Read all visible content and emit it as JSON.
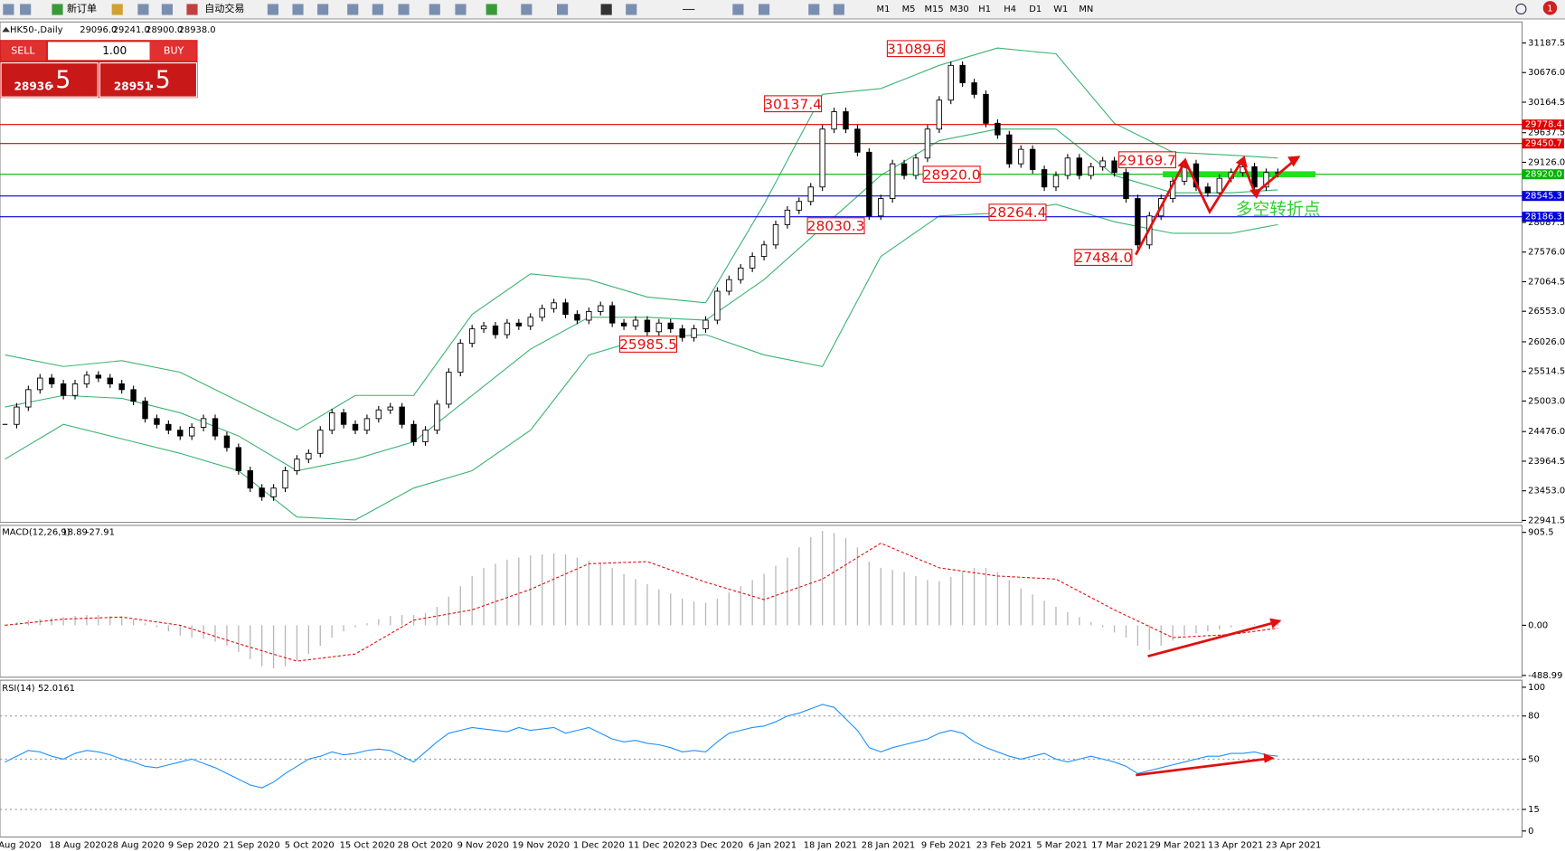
{
  "toolbar": {
    "new_order": "新订单",
    "auto_trading": "自动交易",
    "timeframes": [
      "M1",
      "M5",
      "M15",
      "M30",
      "H1",
      "H4",
      "D1",
      "W1",
      "MN"
    ],
    "notifications": "1"
  },
  "trade_panel": {
    "sell": "SELL",
    "buy": "BUY",
    "lots": "1.00",
    "sell_price": [
      "28936",
      ".5"
    ],
    "buy_price": [
      "28951",
      ".5"
    ]
  },
  "chart_data": [
    {
      "type": "candlestick",
      "title": "HK50-,Daily",
      "quote": [
        "29096.0",
        "29241.0",
        "28900.0",
        "28938.0"
      ],
      "closes": [
        24600,
        24900,
        25200,
        25400,
        25300,
        25100,
        25300,
        25450,
        25400,
        25300,
        25200,
        25000,
        24700,
        24600,
        24500,
        24400,
        24550,
        24700,
        24400,
        24200,
        23800,
        23500,
        23350,
        23500,
        23800,
        24000,
        24100,
        24500,
        24800,
        24600,
        24500,
        24700,
        24850,
        24900,
        24600,
        24300,
        24500,
        24950,
        25500,
        26000,
        26250,
        26300,
        26150,
        26350,
        26300,
        26450,
        26600,
        26700,
        26500,
        26400,
        26550,
        26650,
        26350,
        26300,
        26400,
        26200,
        26350,
        26250,
        26100,
        26250,
        26400,
        26900,
        27100,
        27300,
        27500,
        27700,
        28050,
        28300,
        28450,
        28700,
        29700,
        30000,
        29700,
        29300,
        28200,
        28500,
        29100,
        28900,
        29200,
        29700,
        30200,
        30800,
        30500,
        30300,
        29800,
        29600,
        29100,
        29350,
        29000,
        28700,
        28900,
        29200,
        28900,
        29050,
        29150,
        28950,
        28500,
        27700,
        28200,
        28500,
        28800,
        29100,
        28700,
        28600,
        28850,
        28950,
        29050,
        28700,
        28950,
        28938
      ],
      "bands": {
        "x": [
          0,
          5,
          10,
          15,
          20,
          25,
          30,
          35,
          40,
          45,
          50,
          55,
          60,
          65,
          70,
          75,
          80,
          85,
          90,
          95,
          100,
          105,
          109
        ],
        "upper": [
          25800,
          25600,
          25700,
          25500,
          25000,
          24500,
          25100,
          25100,
          26500,
          27200,
          27100,
          26800,
          26700,
          28400,
          30300,
          30400,
          30800,
          31100,
          31000,
          29800,
          29300,
          29250,
          29200
        ],
        "middle": [
          24900,
          25100,
          25050,
          24800,
          24400,
          23800,
          24000,
          24300,
          25100,
          25900,
          26450,
          26450,
          26400,
          27100,
          28000,
          28900,
          29500,
          29700,
          29700,
          28900,
          28600,
          28600,
          28650
        ],
        "lower": [
          24000,
          24600,
          24350,
          24100,
          23800,
          23000,
          22950,
          23500,
          23800,
          24500,
          25800,
          26100,
          26150,
          25800,
          25600,
          27500,
          28200,
          28250,
          28400,
          28100,
          27900,
          27900,
          28050
        ]
      },
      "ylim": [
        22907.5,
        31549.8
      ],
      "yticks": [
        31187.5,
        {
          "value": 30676,
          "label": "30676.0"
        },
        30164.5,
        29637.5,
        {
          "value": 29126,
          "label": "29126.0"
        },
        28087.5,
        {
          "value": 27576,
          "label": "27576.0"
        },
        27064.5,
        {
          "value": 26553,
          "label": "26553.0"
        },
        {
          "value": 26026,
          "label": "26026.0"
        },
        25514.5,
        {
          "value": 25003,
          "label": "25003.0"
        },
        {
          "value": 24476,
          "label": "24476.0"
        },
        23964.5,
        {
          "value": 23453,
          "label": "23453.0"
        },
        22941.5
      ],
      "price_lines": [
        {
          "value": 29778.4,
          "color": "#e00000"
        },
        {
          "value": 29450.7,
          "color": "#e00000"
        },
        {
          "value": 28920,
          "label": "28920.0",
          "color": "#00b400"
        },
        {
          "value": 28545.3,
          "color": "#0000e0"
        },
        {
          "value": 28186.3,
          "color": "#0000e0"
        }
      ],
      "annotations": [
        {
          "value": 31089.6
        },
        {
          "value": 30137.4
        },
        {
          "value": 29169.7
        },
        {
          "value": 28920,
          "label": "28920.0"
        },
        {
          "value": 28264.4
        },
        {
          "value": 28030.3
        },
        {
          "value": 27484,
          "label": "27484.0"
        },
        {
          "value": 25985.5
        }
      ],
      "note": "多空转折点",
      "dates": [
        "Aug 2020",
        "18 Aug 2020",
        "28 Aug 2020",
        "9 Sep 2020",
        "21 Sep 2020",
        "5 Oct 2020",
        "15 Oct 2020",
        "28 Oct 2020",
        "9 Nov 2020",
        "19 Nov 2020",
        "1 Dec 2020",
        "11 Dec 2020",
        "23 Dec 2020",
        "6 Jan 2021",
        "18 Jan 2021",
        "28 Jan 2021",
        "9 Feb 2021",
        "23 Feb 2021",
        "5 Mar 2021",
        "17 Mar 2021",
        "29 Mar 2021",
        "13 Apr 2021",
        "23 Apr 2021"
      ]
    },
    {
      "type": "macd",
      "title": "MACD(12,26,9)",
      "values": [
        10,
        30,
        50,
        60,
        70,
        80,
        90,
        100,
        100,
        90,
        80,
        60,
        20,
        -20,
        -60,
        -100,
        -120,
        -130,
        -160,
        -200,
        -260,
        -330,
        -400,
        -420,
        -400,
        -340,
        -280,
        -200,
        -120,
        -60,
        -20,
        20,
        60,
        90,
        100,
        100,
        120,
        180,
        280,
        380,
        480,
        560,
        600,
        640,
        660,
        680,
        690,
        700,
        690,
        660,
        630,
        600,
        560,
        500,
        450,
        400,
        350,
        310,
        260,
        230,
        220,
        260,
        320,
        380,
        440,
        500,
        580,
        660,
        760,
        860,
        920,
        900,
        850,
        760,
        620,
        560,
        540,
        520,
        480,
        440,
        430,
        470,
        520,
        560,
        560,
        520,
        440,
        360,
        300,
        240,
        180,
        130,
        80,
        30,
        -20,
        -70,
        -120,
        -200,
        -240,
        -200,
        -150,
        -100,
        -80,
        -60,
        -40,
        -20,
        0,
        10,
        15,
        18.89
      ],
      "signal": [
        0,
        60,
        80,
        0,
        -180,
        -350,
        -280,
        50,
        150,
        350,
        600,
        620,
        420,
        250,
        450,
        800,
        560,
        480,
        450,
        150,
        -120,
        -90,
        -27.91
      ],
      "ylim": [
        -506.3,
        973.7
      ],
      "yticks": [
        905.5,
        {
          "value": 0,
          "label": "0.00"
        },
        -488.99
      ]
    },
    {
      "type": "rsi",
      "title": "RSI(14)",
      "values": [
        48,
        52,
        56,
        55,
        52,
        50,
        54,
        56,
        55,
        53,
        50,
        48,
        45,
        44,
        46,
        48,
        50,
        47,
        44,
        40,
        36,
        32,
        30,
        34,
        40,
        45,
        50,
        52,
        55,
        53,
        54,
        56,
        57,
        56,
        52,
        48,
        55,
        62,
        68,
        70,
        72,
        71,
        70,
        69,
        72,
        70,
        71,
        72,
        68,
        70,
        72,
        68,
        64,
        62,
        63,
        61,
        60,
        58,
        55,
        56,
        55,
        62,
        68,
        70,
        72,
        73,
        76,
        80,
        82,
        85,
        88,
        86,
        78,
        70,
        58,
        55,
        58,
        60,
        62,
        64,
        68,
        70,
        68,
        62,
        58,
        55,
        52,
        50,
        52,
        54,
        50,
        48,
        50,
        52,
        50,
        48,
        45,
        40,
        42,
        44,
        46,
        48,
        50,
        52,
        52,
        54,
        54,
        55,
        53,
        52.0161
      ],
      "ylim": [
        -4.2,
        104.9
      ],
      "yticks": [
        100,
        80,
        50,
        15,
        0
      ],
      "levels": [
        80,
        50,
        15
      ]
    }
  ]
}
